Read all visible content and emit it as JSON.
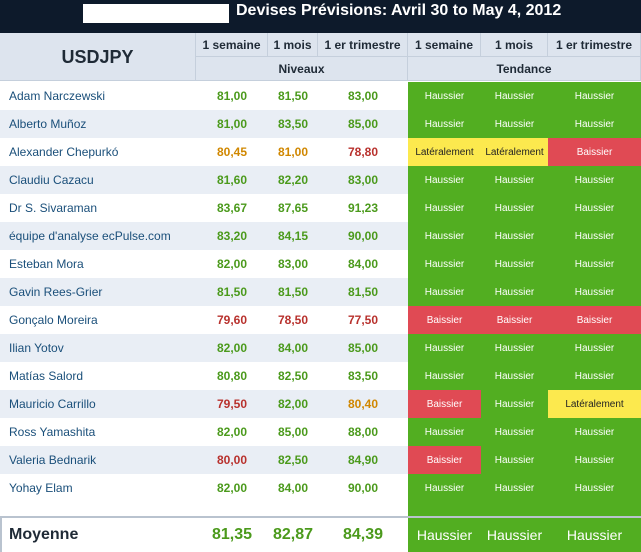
{
  "title": "Devises Prévisions: Avril 30 to May 4, 2012",
  "header": {
    "pair": "USDJPY",
    "col_1_semaine": "1 semaine",
    "col_1_mois": "1 mois",
    "col_1er_trimestre": "1 er trimestre",
    "group_niveaux": "Niveaux",
    "group_tendance": "Tendance"
  },
  "colors": {
    "haussier": "#52ae21",
    "baissier": "#e04a54",
    "lateralement": "#fce94e",
    "value_green": "#4b9a1c",
    "value_orange": "#d08700",
    "value_red": "#b8312d"
  },
  "rows": [
    {
      "name": "Adam Narczewski",
      "w": "81,00",
      "m": "81,50",
      "q": "83,00",
      "wc": "green",
      "mc": "green",
      "qc": "green",
      "tw": "Haussier",
      "tm": "Haussier",
      "tq": "Haussier"
    },
    {
      "name": "Alberto Muñoz",
      "w": "81,00",
      "m": "83,50",
      "q": "85,00",
      "wc": "green",
      "mc": "green",
      "qc": "green",
      "tw": "Haussier",
      "tm": "Haussier",
      "tq": "Haussier"
    },
    {
      "name": "Alexander Chepurkó",
      "w": "80,45",
      "m": "81,00",
      "q": "78,80",
      "wc": "orange",
      "mc": "orange",
      "qc": "red",
      "tw": "Latéralement",
      "tm": "Latéralement",
      "tq": "Baissier"
    },
    {
      "name": "Claudiu Cazacu",
      "w": "81,60",
      "m": "82,20",
      "q": "83,00",
      "wc": "green",
      "mc": "green",
      "qc": "green",
      "tw": "Haussier",
      "tm": "Haussier",
      "tq": "Haussier"
    },
    {
      "name": "Dr S. Sivaraman",
      "w": "83,67",
      "m": "87,65",
      "q": "91,23",
      "wc": "green",
      "mc": "green",
      "qc": "green",
      "tw": "Haussier",
      "tm": "Haussier",
      "tq": "Haussier"
    },
    {
      "name": "équipe d'analyse ecPulse.com",
      "w": "83,20",
      "m": "84,15",
      "q": "90,00",
      "wc": "green",
      "mc": "green",
      "qc": "green",
      "tw": "Haussier",
      "tm": "Haussier",
      "tq": "Haussier"
    },
    {
      "name": "Esteban Mora",
      "w": "82,00",
      "m": "83,00",
      "q": "84,00",
      "wc": "green",
      "mc": "green",
      "qc": "green",
      "tw": "Haussier",
      "tm": "Haussier",
      "tq": "Haussier"
    },
    {
      "name": "Gavin Rees-Grier",
      "w": "81,50",
      "m": "81,50",
      "q": "81,50",
      "wc": "green",
      "mc": "green",
      "qc": "green",
      "tw": "Haussier",
      "tm": "Haussier",
      "tq": "Haussier"
    },
    {
      "name": "Gonçalo Moreira",
      "w": "79,60",
      "m": "78,50",
      "q": "77,50",
      "wc": "red",
      "mc": "red",
      "qc": "red",
      "tw": "Baissier",
      "tm": "Baissier",
      "tq": "Baissier"
    },
    {
      "name": "Ilian Yotov",
      "w": "82,00",
      "m": "84,00",
      "q": "85,00",
      "wc": "green",
      "mc": "green",
      "qc": "green",
      "tw": "Haussier",
      "tm": "Haussier",
      "tq": "Haussier"
    },
    {
      "name": "Matías Salord",
      "w": "80,80",
      "m": "82,50",
      "q": "83,50",
      "wc": "green",
      "mc": "green",
      "qc": "green",
      "tw": "Haussier",
      "tm": "Haussier",
      "tq": "Haussier"
    },
    {
      "name": "Mauricio Carrillo",
      "w": "79,50",
      "m": "82,00",
      "q": "80,40",
      "wc": "red",
      "mc": "green",
      "qc": "orange",
      "tw": "Baissier",
      "tm": "Haussier",
      "tq": "Latéralement"
    },
    {
      "name": "Ross Yamashita",
      "w": "82,00",
      "m": "85,00",
      "q": "88,00",
      "wc": "green",
      "mc": "green",
      "qc": "green",
      "tw": "Haussier",
      "tm": "Haussier",
      "tq": "Haussier"
    },
    {
      "name": "Valeria Bednarik",
      "w": "80,00",
      "m": "82,50",
      "q": "84,90",
      "wc": "red",
      "mc": "green",
      "qc": "green",
      "tw": "Baissier",
      "tm": "Haussier",
      "tq": "Haussier"
    },
    {
      "name": "Yohay Elam",
      "w": "82,00",
      "m": "84,00",
      "q": "90,00",
      "wc": "green",
      "mc": "green",
      "qc": "green",
      "tw": "Haussier",
      "tm": "Haussier",
      "tq": "Haussier"
    }
  ],
  "average": {
    "label": "Moyenne",
    "w": "81,35",
    "m": "82,87",
    "q": "84,39",
    "tw": "Haussier",
    "tm": "Haussier",
    "tq": "Haussier"
  }
}
